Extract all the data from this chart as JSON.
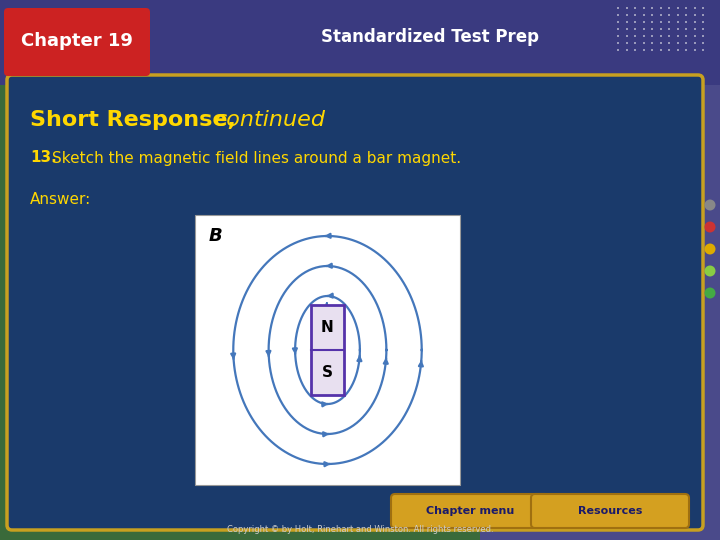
{
  "bg_outer_left_color": "#3a6a3a",
  "bg_outer_right_color": "#4a4a8a",
  "bg_main_color": "#1a3a6b",
  "bg_main_border_color": "#c8a020",
  "header_bg_color": "#3a3a8a",
  "chapter_box_color": "#cc2222",
  "chapter_text": "Chapter 19",
  "header_title": "Standardized Test Prep",
  "section_title_bold": "Short Response,",
  "section_title_italic": "continued",
  "question_number": "13.",
  "question_text": "Sketch the magnetic field lines around a bar magnet.",
  "answer_label": "Answer:",
  "magnet_N": "N",
  "magnet_S": "S",
  "field_label": "B",
  "button1": "Chapter menu",
  "button2": "Resources",
  "copyright": "Copyright © by Holt, Rinehart and Winston. All rights reserved.",
  "title_color": "#ffd700",
  "question_color": "#ffd700",
  "answer_color": "#ffd700",
  "magnet_fill_color": "#e8e0f0",
  "magnet_border_color": "#5533aa",
  "field_line_color": "#4477bb",
  "dot_colors": [
    "#888888",
    "#cc3333",
    "#ddaa00",
    "#88cc44",
    "#44aa44"
  ]
}
